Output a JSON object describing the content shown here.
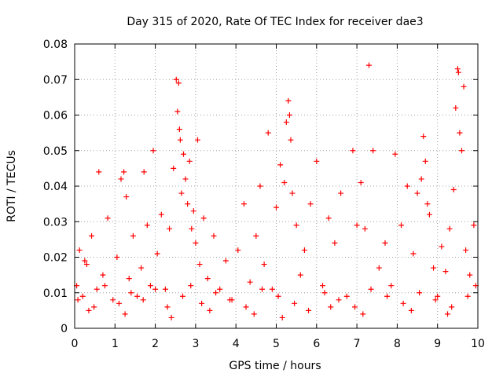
{
  "chart_data": {
    "type": "scatter",
    "title": "Day 315 of 2020, Rate Of TEC Index for receiver dae3",
    "xlabel": "GPS time / hours",
    "ylabel": "ROTI / TECUs",
    "xlim": [
      0,
      10
    ],
    "ylim": [
      0,
      0.08
    ],
    "xticks": [
      0,
      1,
      2,
      3,
      4,
      5,
      6,
      7,
      8,
      9,
      10
    ],
    "yticks": [
      0,
      0.01,
      0.02,
      0.03,
      0.04,
      0.05,
      0.06,
      0.07,
      0.08
    ],
    "grid": true,
    "marker": "+",
    "color": "#ff0000",
    "series": [
      {
        "name": "ROTI",
        "x": [
          0.05,
          0.12,
          0.2,
          0.3,
          0.42,
          0.55,
          0.6,
          0.7,
          0.82,
          0.95,
          1.05,
          1.15,
          1.22,
          1.28,
          1.35,
          1.45,
          1.55,
          1.65,
          1.72,
          1.8,
          1.88,
          1.95,
          2.05,
          2.15,
          2.25,
          2.35,
          2.45,
          2.52,
          2.55,
          2.58,
          2.6,
          2.62,
          2.65,
          2.7,
          2.75,
          2.8,
          2.85,
          2.9,
          2.95,
          3.0,
          3.05,
          3.1,
          3.2,
          3.3,
          3.45,
          3.6,
          3.75,
          3.9,
          4.05,
          4.2,
          4.35,
          4.5,
          4.6,
          4.7,
          4.8,
          4.9,
          5.0,
          5.1,
          5.2,
          5.25,
          5.3,
          5.33,
          5.36,
          5.4,
          5.5,
          5.6,
          5.7,
          5.85,
          6.0,
          6.15,
          6.3,
          6.45,
          6.6,
          6.75,
          6.9,
          7.0,
          7.1,
          7.2,
          7.3,
          7.4,
          7.55,
          7.7,
          7.85,
          7.95,
          8.1,
          8.25,
          8.4,
          8.5,
          8.6,
          8.65,
          8.7,
          8.75,
          8.8,
          8.9,
          9.0,
          9.1,
          9.2,
          9.3,
          9.4,
          9.45,
          9.5,
          9.52,
          9.55,
          9.6,
          9.65,
          9.7,
          9.8,
          9.9,
          0.08,
          0.25,
          0.48,
          0.75,
          1.1,
          1.4,
          1.7,
          2.0,
          2.3,
          2.68,
          2.88,
          3.15,
          3.5,
          3.85,
          4.25,
          4.65,
          5.05,
          5.45,
          5.8,
          6.2,
          6.55,
          6.95,
          7.35,
          7.75,
          8.15,
          8.55,
          8.95,
          9.35,
          9.75,
          9.95,
          0.35,
          1.25,
          2.4,
          3.35,
          4.45,
          5.15,
          6.35,
          7.15,
          8.35,
          9.25
        ],
        "y": [
          0.012,
          0.022,
          0.009,
          0.018,
          0.026,
          0.011,
          0.044,
          0.015,
          0.031,
          0.008,
          0.02,
          0.042,
          0.044,
          0.037,
          0.014,
          0.026,
          0.009,
          0.017,
          0.044,
          0.029,
          0.012,
          0.05,
          0.021,
          0.032,
          0.011,
          0.028,
          0.045,
          0.07,
          0.061,
          0.069,
          0.056,
          0.053,
          0.038,
          0.049,
          0.042,
          0.035,
          0.047,
          0.028,
          0.033,
          0.024,
          0.053,
          0.018,
          0.031,
          0.014,
          0.026,
          0.011,
          0.019,
          0.008,
          0.022,
          0.035,
          0.013,
          0.026,
          0.04,
          0.018,
          0.055,
          0.011,
          0.034,
          0.046,
          0.041,
          0.058,
          0.064,
          0.06,
          0.053,
          0.038,
          0.029,
          0.015,
          0.022,
          0.035,
          0.047,
          0.012,
          0.031,
          0.024,
          0.038,
          0.009,
          0.05,
          0.029,
          0.041,
          0.028,
          0.074,
          0.05,
          0.017,
          0.024,
          0.012,
          0.049,
          0.029,
          0.04,
          0.021,
          0.038,
          0.042,
          0.054,
          0.047,
          0.035,
          0.032,
          0.017,
          0.009,
          0.023,
          0.016,
          0.028,
          0.039,
          0.062,
          0.073,
          0.072,
          0.055,
          0.05,
          0.068,
          0.022,
          0.015,
          0.029,
          0.008,
          0.019,
          0.006,
          0.012,
          0.007,
          0.01,
          0.008,
          0.011,
          0.006,
          0.009,
          0.012,
          0.007,
          0.01,
          0.008,
          0.006,
          0.011,
          0.009,
          0.007,
          0.005,
          0.01,
          0.008,
          0.006,
          0.011,
          0.009,
          0.007,
          0.01,
          0.008,
          0.006,
          0.009,
          0.012,
          0.005,
          0.004,
          0.003,
          0.005,
          0.004,
          0.003,
          0.006,
          0.004,
          0.005,
          0.004
        ]
      }
    ]
  }
}
